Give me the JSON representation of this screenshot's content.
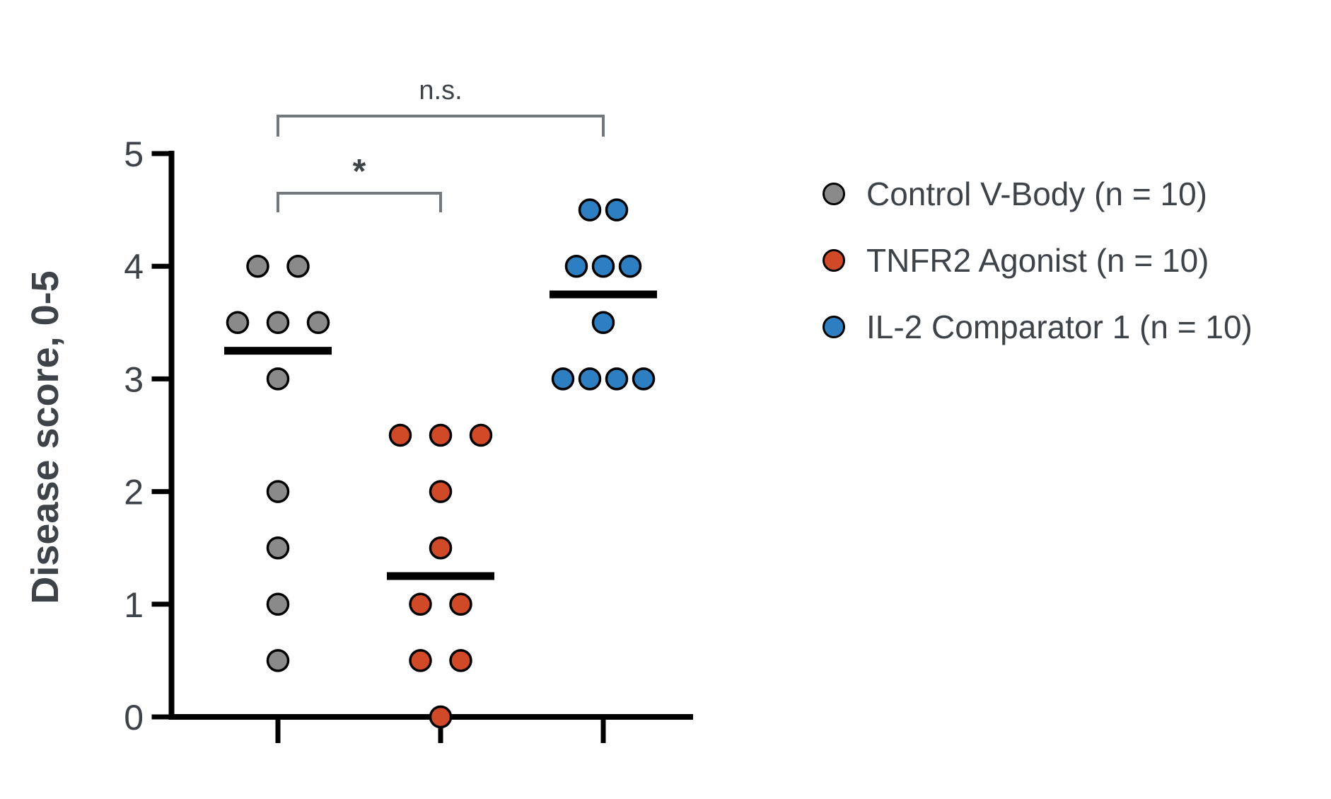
{
  "figure": {
    "background": "#ffffff"
  },
  "colors": {
    "text": "#3d4348",
    "axis": "#000000",
    "dot_outline": "#000000",
    "median_line": "#000000",
    "bracket": "#70787d",
    "gray_series": "#8a8a8a",
    "red_series": "#d14a28",
    "blue_series": "#2e7fc1"
  },
  "chart_data": {
    "type": "scatter",
    "subtype": "grouped-dot-plot-with-median-lines",
    "title": "",
    "xlabel": "",
    "ylabel": "Disease score, 0-5",
    "ylim": [
      0,
      5
    ],
    "yticks": [
      5,
      4,
      3,
      2,
      1,
      0
    ],
    "grid": false,
    "legend_position": "right",
    "series": [
      {
        "name": "Control V-Body (n = 10)",
        "n": 10,
        "color": "#8a8a8a",
        "values": [
          4,
          4,
          3.5,
          3.5,
          3.5,
          3,
          2,
          1.5,
          1,
          0.5
        ],
        "median": 3.25
      },
      {
        "name": "TNFR2 Agonist (n = 10)",
        "n": 10,
        "color": "#d14a28",
        "values": [
          2.5,
          2.5,
          2.5,
          2,
          1.5,
          1,
          1,
          0.5,
          0.5,
          0
        ],
        "median": 1.25
      },
      {
        "name": "IL-2 Comparator 1 (n = 10)",
        "n": 10,
        "color": "#2e7fc1",
        "values": [
          4.5,
          4.5,
          4,
          4,
          4,
          3.5,
          3,
          3,
          3,
          3
        ],
        "median": 3.75
      }
    ],
    "annotations": [
      {
        "label": "*",
        "between": [
          0,
          1
        ],
        "meaning": "significant"
      },
      {
        "label": "n.s.",
        "between": [
          0,
          2
        ],
        "meaning": "not significant"
      }
    ]
  }
}
